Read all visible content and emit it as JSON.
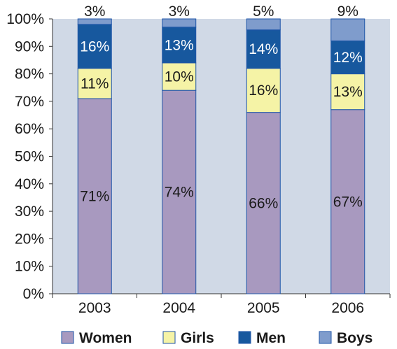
{
  "chart_data": {
    "type": "bar",
    "stacked": true,
    "categories": [
      "2003",
      "2004",
      "2005",
      "2006"
    ],
    "series": [
      {
        "name": "Women",
        "values": [
          71,
          74,
          66,
          67
        ],
        "labels": [
          "71%",
          "74%",
          "66%",
          "67%"
        ],
        "color": "#a899bf",
        "label_color": "#1a1a1a"
      },
      {
        "name": "Girls",
        "values": [
          11,
          10,
          16,
          13
        ],
        "labels": [
          "11%",
          "10%",
          "16%",
          "13%"
        ],
        "color": "#f5f3a6",
        "label_color": "#1a1a1a"
      },
      {
        "name": "Men",
        "values": [
          16,
          13,
          14,
          12
        ],
        "labels": [
          "16%",
          "13%",
          "14%",
          "12%"
        ],
        "color": "#17589e",
        "label_color": "#ffffff"
      },
      {
        "name": "Boys",
        "values": [
          3,
          3,
          5,
          9
        ],
        "labels": [
          "3%",
          "3%",
          "5%",
          "9%"
        ],
        "color": "#7f9ccc",
        "label_color": "#1a1a1a"
      }
    ],
    "yticks": [
      "0%",
      "10%",
      "20%",
      "30%",
      "40%",
      "50%",
      "60%",
      "70%",
      "80%",
      "90%",
      "100%"
    ],
    "ylim": [
      0,
      100
    ],
    "grid": false,
    "legend_position": "bottom",
    "plot_background": "#d0d9e6",
    "edge_color": "#1f56a8"
  }
}
